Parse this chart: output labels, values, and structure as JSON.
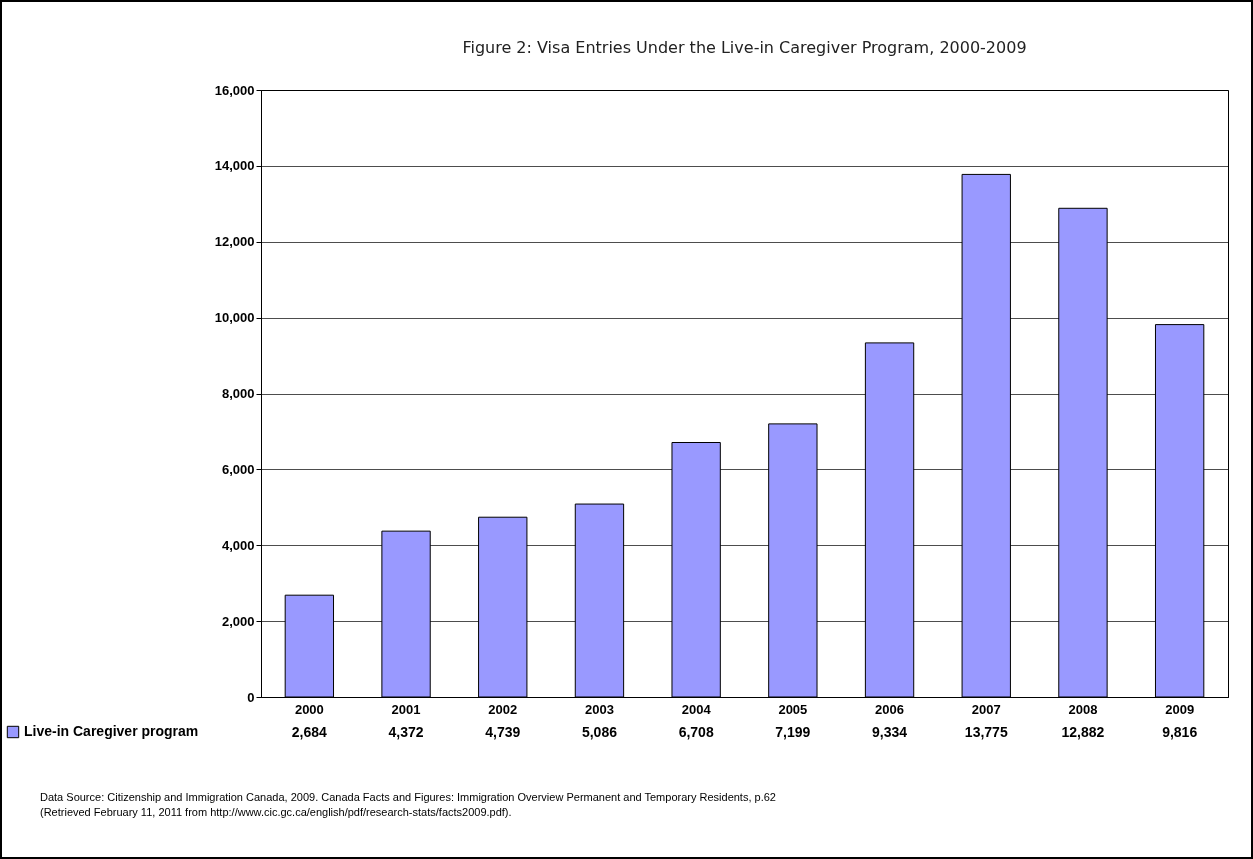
{
  "chart_data": {
    "type": "bar",
    "title": "Figure 2: Visa Entries Under the Live-in Caregiver Program, 2000-2009",
    "categories": [
      "2000",
      "2001",
      "2002",
      "2003",
      "2004",
      "2005",
      "2006",
      "2007",
      "2008",
      "2009"
    ],
    "series": [
      {
        "name": "Live-in Caregiver program",
        "color": "#9999ff",
        "values": [
          2684,
          4372,
          4739,
          5086,
          6708,
          7199,
          9334,
          13775,
          12882,
          9816
        ],
        "value_labels": [
          "2,684",
          "4,372",
          "4,739",
          "5,086",
          "6,708",
          "7,199",
          "9,334",
          "13,775",
          "12,882",
          "9,816"
        ]
      }
    ],
    "ylim": [
      0,
      16000
    ],
    "yticks": [
      0,
      {
        "value": 2000,
        "label": "2,000"
      },
      {
        "value": 4000,
        "label": "4,000"
      },
      {
        "value": 6000,
        "label": "6,000"
      },
      {
        "value": 8000,
        "label": "8,000"
      },
      {
        "value": 10000,
        "label": "10,000"
      },
      {
        "value": 12000,
        "label": "12,000"
      },
      {
        "value": 14000,
        "label": "14,000"
      },
      {
        "value": 16000,
        "label": "16,000"
      }
    ],
    "grid": "y",
    "legend": "bottom left",
    "annotations": [
      "Data Source: Citizenship and Immigration Canada, 2009. Canada Facts and Figures: Immigration Overview Permanent and Temporary Residents, p.62",
      "(Retrieved February 11, 2011 from http://www.cic.gc.ca/english/pdf/research-stats/facts2009.pdf)."
    ]
  }
}
